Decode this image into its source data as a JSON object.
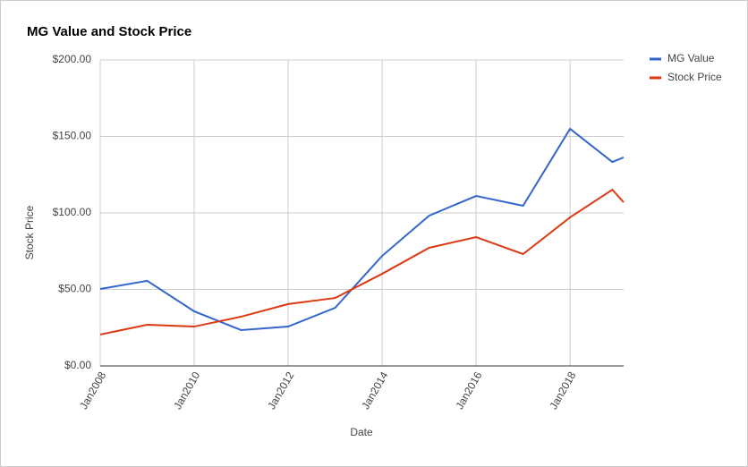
{
  "chart_data": {
    "type": "line",
    "title": "MG Value and Stock Price",
    "x_label": "Date",
    "y_label": "Stock Price",
    "x": [
      2008,
      2009,
      2010,
      2011,
      2012,
      2013,
      2014,
      2015,
      2016,
      2017,
      2018,
      2018.9,
      2019.14
    ],
    "series": [
      {
        "name": "MG Value",
        "color": "#3366cc",
        "values": [
          50.3,
          55.6,
          35.7,
          23.4,
          25.7,
          38,
          71.9,
          98.2,
          111.1,
          104.7,
          155,
          133.3,
          136.3
        ]
      },
      {
        "name": "Stock Price",
        "color": "#dc3912",
        "values": [
          20.5,
          26.9,
          25.7,
          32.2,
          40.4,
          44.4,
          60.2,
          77.2,
          84.2,
          73.1,
          97.1,
          115.2,
          107
        ]
      }
    ],
    "xlim": [
      2008,
      2019.14
    ],
    "xticks": [
      {
        "value": 2008,
        "label": "Jan2008"
      },
      {
        "value": 2010,
        "label": "Jan2010"
      },
      {
        "value": 2012,
        "label": "Jan2012"
      },
      {
        "value": 2014,
        "label": "Jan2014"
      },
      {
        "value": 2016,
        "label": "Jan2016"
      },
      {
        "value": 2018,
        "label": "Jan2018"
      }
    ],
    "ylim": [
      0,
      200
    ],
    "yticks": [
      {
        "value": 0,
        "label": "$0.00"
      },
      {
        "value": 50,
        "label": "$50.00"
      },
      {
        "value": 100,
        "label": "$100.00"
      },
      {
        "value": 150,
        "label": "$150.00"
      },
      {
        "value": 200,
        "label": "$200.00"
      }
    ],
    "grid": true,
    "legend": "right"
  }
}
